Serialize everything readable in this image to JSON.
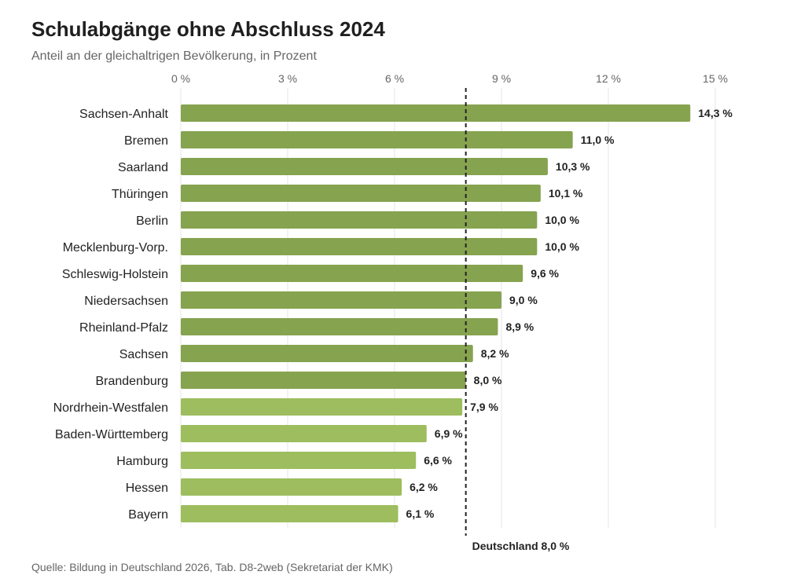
{
  "header": {
    "title": "Schulabgänge ohne Abschluss 2024",
    "subtitle": "Anteil an der gleichaltrigen Bevölkerung, in Prozent"
  },
  "footer": {
    "source": "Quelle: Bildung in Deutschland 2026, Tab. D8-2web (Sekretariat der KMK)"
  },
  "colors": {
    "above_reference": "#86a34f",
    "below_reference": "#9dbd5e",
    "gridline": "#e6e6e6",
    "reference_line": "#222222"
  },
  "chart_data": {
    "type": "bar",
    "orientation": "horizontal",
    "title": "Schulabgänge ohne Abschluss 2024",
    "subtitle": "Anteil an der gleichaltrigen Bevölkerung, in Prozent",
    "xlim": [
      0,
      15
    ],
    "xticks": [
      0,
      3,
      6,
      9,
      12,
      15
    ],
    "xtick_labels": [
      "0 %",
      "3 %",
      "6 %",
      "9 %",
      "12 %",
      "15 %"
    ],
    "x_axis_position": "top",
    "grid": true,
    "categories": [
      "Sachsen-Anhalt",
      "Bremen",
      "Saarland",
      "Thüringen",
      "Berlin",
      "Mecklenburg-Vorp.",
      "Schleswig-Holstein",
      "Niedersachsen",
      "Rheinland-Pfalz",
      "Sachsen",
      "Brandenburg",
      "Nordrhein-Westfalen",
      "Baden-Württemberg",
      "Hamburg",
      "Hessen",
      "Bayern"
    ],
    "values": [
      14.3,
      11.0,
      10.3,
      10.1,
      10.0,
      10.0,
      9.6,
      9.0,
      8.9,
      8.2,
      8.0,
      7.9,
      6.9,
      6.6,
      6.2,
      6.1
    ],
    "value_labels": [
      "14,3 %",
      "11,0 %",
      "10,3 %",
      "10,1 %",
      "10,0 %",
      "10,0 %",
      "9,6 %",
      "9,0 %",
      "8,9 %",
      "8,2 %",
      "8,0 %",
      "7,9 %",
      "6,9 %",
      "6,6 %",
      "6,2 %",
      "6,1 %"
    ],
    "reference": {
      "value": 8.0,
      "label": "Deutschland 8,0 %",
      "style": "dashed"
    }
  }
}
